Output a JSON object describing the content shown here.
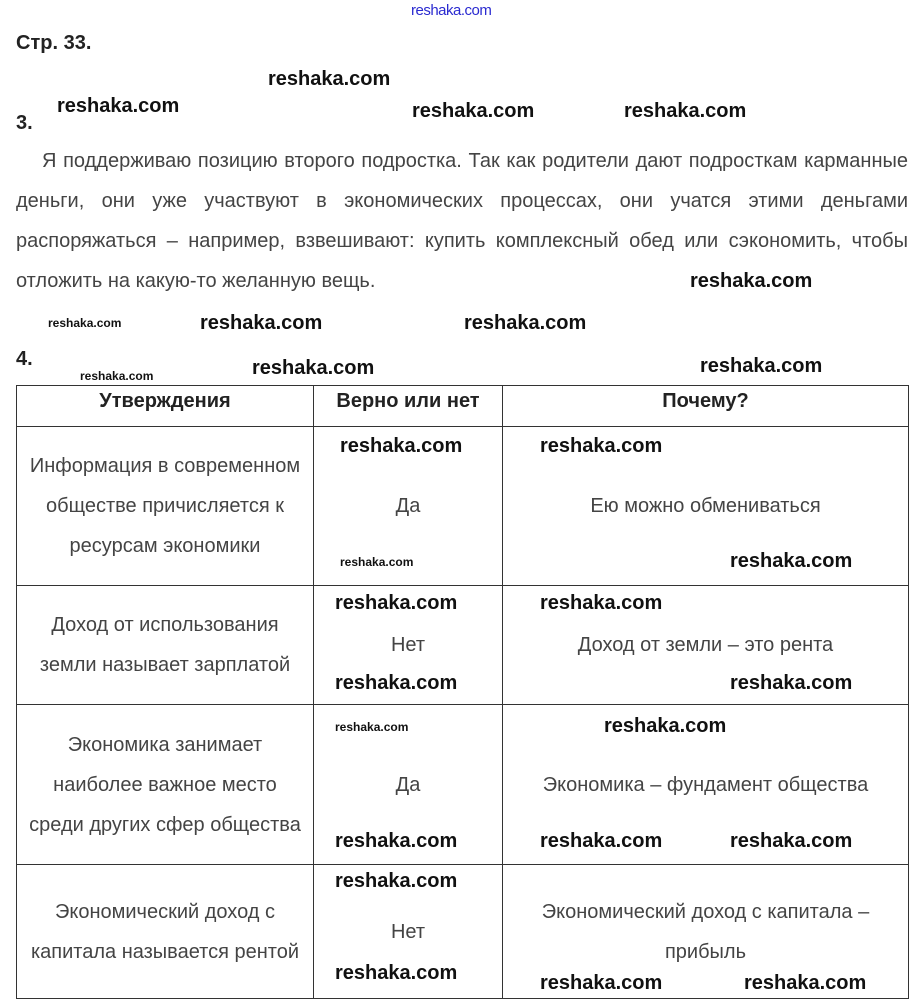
{
  "site_link": "reshaka.com",
  "page_heading": "Стр. 33.",
  "watermark": "reshaka.com",
  "task3": {
    "number": "3.",
    "text": "Я поддерживаю позицию второго подростка. Так как родители дают подросткам карманные деньги, они уже участвуют в экономических процессах, они учатся этими деньгами распоряжаться – например, взвешивают: купить комплексный обед или сэкономить, чтобы отложить на какую-то желанную вещь."
  },
  "task4": {
    "number": "4.",
    "headers": [
      "Утверждения",
      "Верно или нет",
      "Почему?"
    ],
    "rows": [
      {
        "statement": "Информация в современном обществе причисляется к ресурсам экономики",
        "verdict": "Да",
        "reason": "Ею можно обмениваться"
      },
      {
        "statement": "Доход от использования земли называет зарплатой",
        "verdict": "Нет",
        "reason": "Доход от земли – это рента"
      },
      {
        "statement": "Экономика занимает наиболее важное место среди других сфер общества",
        "verdict": "Да",
        "reason": "Экономика – фундамент общества"
      },
      {
        "statement": "Экономический доход с капитала называется рентой",
        "verdict": "Нет",
        "reason": "Экономический доход с капитала – прибыль"
      }
    ]
  }
}
